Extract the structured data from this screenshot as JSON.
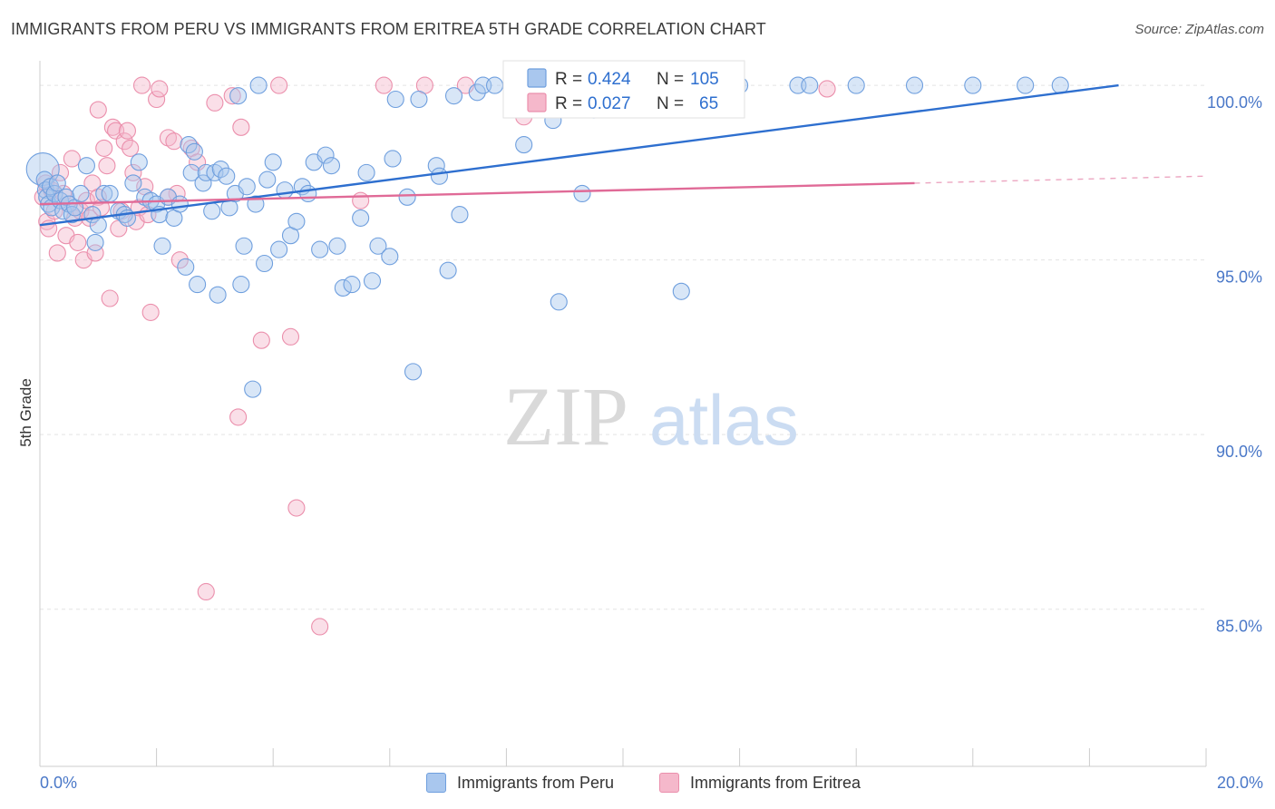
{
  "header": {
    "title": "IMMIGRANTS FROM PERU VS IMMIGRANTS FROM ERITREA 5TH GRADE CORRELATION CHART",
    "source": "Source: ZipAtlas.com"
  },
  "watermark": {
    "zip": "ZIP",
    "atlas": "atlas"
  },
  "stats_box": {
    "rows": [
      {
        "r_label": "R =",
        "r_value": "0.424",
        "n_label": "N =",
        "n_value": "105"
      },
      {
        "r_label": "R =",
        "r_value": "0.027",
        "n_label": "N =",
        "n_value": "65"
      }
    ]
  },
  "legend": {
    "peru": "Immigrants from Peru",
    "eritrea": "Immigrants from Eritrea"
  },
  "colors": {
    "peru_fill": "#a9c7ee",
    "peru_stroke": "#6f9fde",
    "peru_line": "#2e6fcf",
    "eritrea_fill": "#f5b8cb",
    "eritrea_stroke": "#eb8fac",
    "eritrea_line": "#e06a97",
    "tick_label": "#4a78c8",
    "grid": "#e3e3e3"
  },
  "chart_data": {
    "type": "scatter",
    "title": "IMMIGRANTS FROM PERU VS IMMIGRANTS FROM ERITREA 5TH GRADE CORRELATION CHART",
    "xlabel": "",
    "ylabel": "5th Grade",
    "xlim": [
      0,
      20
    ],
    "ylim": [
      80.5,
      100.6
    ],
    "x_tick_labels": [
      "0.0%",
      "20.0%"
    ],
    "y_ticks": [
      85,
      90,
      95,
      100
    ],
    "y_tick_labels": [
      "85.0%",
      "90.0%",
      "95.0%",
      "100.0%"
    ],
    "grid": true,
    "legend_position": "bottom",
    "series": [
      {
        "name": "Immigrants from Peru",
        "R": 0.424,
        "N": 105,
        "trend": {
          "x": [
            0.0,
            18.5
          ],
          "y": [
            96.0,
            100.0
          ]
        },
        "points": [
          [
            0.05,
            97.6
          ],
          [
            0.08,
            97.3
          ],
          [
            0.1,
            97.0
          ],
          [
            0.12,
            96.8
          ],
          [
            0.15,
            96.6
          ],
          [
            0.18,
            97.1
          ],
          [
            0.2,
            96.5
          ],
          [
            0.25,
            96.9
          ],
          [
            0.3,
            97.2
          ],
          [
            0.35,
            96.7
          ],
          [
            0.4,
            96.4
          ],
          [
            0.45,
            96.8
          ],
          [
            0.5,
            96.6
          ],
          [
            0.55,
            96.3
          ],
          [
            0.6,
            96.5
          ],
          [
            0.7,
            96.9
          ],
          [
            0.8,
            97.7
          ],
          [
            0.9,
            96.3
          ],
          [
            0.95,
            95.5
          ],
          [
            1.0,
            96.0
          ],
          [
            1.1,
            96.9
          ],
          [
            1.2,
            96.9
          ],
          [
            1.35,
            96.4
          ],
          [
            1.45,
            96.3
          ],
          [
            1.5,
            96.2
          ],
          [
            1.6,
            97.2
          ],
          [
            1.7,
            97.8
          ],
          [
            1.8,
            96.8
          ],
          [
            1.9,
            96.7
          ],
          [
            2.0,
            96.6
          ],
          [
            2.05,
            96.3
          ],
          [
            2.1,
            95.4
          ],
          [
            2.2,
            96.8
          ],
          [
            2.3,
            96.2
          ],
          [
            2.4,
            96.6
          ],
          [
            2.5,
            94.8
          ],
          [
            2.55,
            98.3
          ],
          [
            2.6,
            97.5
          ],
          [
            2.65,
            98.1
          ],
          [
            2.7,
            94.3
          ],
          [
            2.8,
            97.2
          ],
          [
            2.85,
            97.5
          ],
          [
            2.95,
            96.4
          ],
          [
            3.0,
            97.5
          ],
          [
            3.05,
            94.0
          ],
          [
            3.1,
            97.6
          ],
          [
            3.2,
            97.4
          ],
          [
            3.25,
            96.5
          ],
          [
            3.35,
            96.9
          ],
          [
            3.4,
            99.7
          ],
          [
            3.45,
            94.3
          ],
          [
            3.5,
            95.4
          ],
          [
            3.55,
            97.1
          ],
          [
            3.65,
            91.3
          ],
          [
            3.7,
            96.6
          ],
          [
            3.75,
            100.0
          ],
          [
            3.85,
            94.9
          ],
          [
            3.9,
            97.3
          ],
          [
            4.0,
            97.8
          ],
          [
            4.1,
            95.3
          ],
          [
            4.2,
            97.0
          ],
          [
            4.3,
            95.7
          ],
          [
            4.4,
            96.1
          ],
          [
            4.5,
            97.1
          ],
          [
            4.6,
            96.9
          ],
          [
            4.7,
            97.8
          ],
          [
            4.8,
            95.3
          ],
          [
            4.9,
            98.0
          ],
          [
            5.0,
            97.7
          ],
          [
            5.1,
            95.4
          ],
          [
            5.2,
            94.2
          ],
          [
            5.35,
            94.3
          ],
          [
            5.5,
            96.2
          ],
          [
            5.6,
            97.5
          ],
          [
            5.7,
            94.4
          ],
          [
            5.8,
            95.4
          ],
          [
            6.0,
            95.1
          ],
          [
            6.05,
            97.9
          ],
          [
            6.1,
            99.6
          ],
          [
            6.3,
            96.8
          ],
          [
            6.5,
            99.6
          ],
          [
            6.8,
            97.7
          ],
          [
            6.85,
            97.4
          ],
          [
            7.0,
            94.7
          ],
          [
            7.1,
            99.7
          ],
          [
            7.2,
            96.3
          ],
          [
            7.5,
            99.8
          ],
          [
            7.6,
            100.0
          ],
          [
            7.8,
            100.0
          ],
          [
            8.3,
            98.3
          ],
          [
            8.8,
            99.0
          ],
          [
            8.9,
            93.8
          ],
          [
            9.3,
            96.9
          ],
          [
            9.5,
            99.3
          ],
          [
            10.5,
            100.0
          ],
          [
            11.0,
            94.1
          ],
          [
            12.0,
            100.0
          ],
          [
            13.0,
            100.0
          ],
          [
            13.2,
            100.0
          ],
          [
            14.0,
            100.0
          ],
          [
            15.0,
            100.0
          ],
          [
            16.0,
            100.0
          ],
          [
            16.9,
            100.0
          ],
          [
            17.5,
            100.0
          ],
          [
            6.4,
            91.8
          ]
        ]
      },
      {
        "name": "Immigrants from Eritrea",
        "R": 0.027,
        "N": 65,
        "trend": {
          "x": [
            0.0,
            15.0
          ],
          "y": [
            96.6,
            97.2
          ]
        },
        "trend_dashed": {
          "x": [
            15.0,
            20.0
          ],
          "y": [
            97.2,
            97.4
          ]
        },
        "points": [
          [
            0.05,
            96.8
          ],
          [
            0.1,
            97.2
          ],
          [
            0.12,
            96.1
          ],
          [
            0.15,
            95.9
          ],
          [
            0.2,
            97.0
          ],
          [
            0.25,
            96.4
          ],
          [
            0.3,
            95.2
          ],
          [
            0.35,
            97.5
          ],
          [
            0.4,
            96.9
          ],
          [
            0.45,
            95.7
          ],
          [
            0.5,
            96.6
          ],
          [
            0.55,
            97.9
          ],
          [
            0.6,
            96.2
          ],
          [
            0.65,
            95.5
          ],
          [
            0.7,
            96.4
          ],
          [
            0.75,
            95.0
          ],
          [
            0.8,
            96.7
          ],
          [
            0.85,
            96.2
          ],
          [
            0.9,
            97.2
          ],
          [
            0.95,
            95.2
          ],
          [
            1.0,
            96.8
          ],
          [
            1.05,
            96.5
          ],
          [
            1.1,
            98.2
          ],
          [
            1.15,
            97.7
          ],
          [
            1.2,
            93.9
          ],
          [
            1.25,
            98.8
          ],
          [
            1.3,
            98.7
          ],
          [
            1.35,
            95.9
          ],
          [
            1.4,
            96.4
          ],
          [
            1.45,
            98.4
          ],
          [
            1.5,
            98.7
          ],
          [
            1.55,
            98.2
          ],
          [
            1.6,
            97.5
          ],
          [
            1.65,
            96.1
          ],
          [
            1.7,
            96.5
          ],
          [
            1.75,
            100.0
          ],
          [
            1.8,
            97.1
          ],
          [
            1.85,
            96.3
          ],
          [
            1.9,
            93.5
          ],
          [
            2.0,
            99.6
          ],
          [
            2.05,
            99.9
          ],
          [
            2.2,
            98.5
          ],
          [
            2.3,
            98.4
          ],
          [
            2.35,
            96.9
          ],
          [
            2.4,
            95.0
          ],
          [
            2.6,
            98.2
          ],
          [
            2.7,
            97.8
          ],
          [
            2.85,
            85.5
          ],
          [
            3.0,
            99.5
          ],
          [
            3.3,
            99.7
          ],
          [
            3.4,
            90.5
          ],
          [
            3.45,
            98.8
          ],
          [
            3.8,
            92.7
          ],
          [
            4.1,
            100.0
          ],
          [
            4.3,
            92.8
          ],
          [
            4.4,
            87.9
          ],
          [
            4.8,
            84.5
          ],
          [
            5.5,
            96.7
          ],
          [
            5.9,
            100.0
          ],
          [
            6.6,
            100.0
          ],
          [
            7.3,
            100.0
          ],
          [
            8.3,
            99.1
          ],
          [
            13.5,
            99.9
          ],
          [
            2.2,
            96.8
          ],
          [
            1.0,
            99.3
          ]
        ]
      }
    ]
  }
}
